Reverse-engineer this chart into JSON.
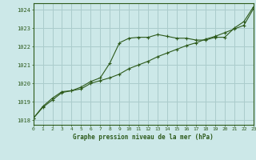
{
  "title": "Graphe pression niveau de la mer (hPa)",
  "bg_color": "#cce8e8",
  "grid_color": "#aacccc",
  "line_color": "#2d5a1b",
  "x_values": [
    0,
    1,
    2,
    3,
    4,
    5,
    6,
    7,
    8,
    9,
    10,
    11,
    12,
    13,
    14,
    15,
    16,
    17,
    18,
    19,
    20,
    21,
    22,
    23
  ],
  "series1": [
    1018.1,
    1018.7,
    1019.1,
    1019.5,
    1019.6,
    1019.8,
    1020.1,
    1020.3,
    1021.1,
    1022.2,
    1022.45,
    1022.5,
    1022.5,
    1022.65,
    1022.55,
    1022.45,
    1022.45,
    1022.35,
    1022.35,
    1022.5,
    1022.5,
    1023.0,
    1023.35,
    1024.15
  ],
  "series2": [
    1018.1,
    1018.75,
    1019.2,
    1019.55,
    1019.6,
    1019.7,
    1020.0,
    1020.15,
    1020.3,
    1020.5,
    1020.8,
    1021.0,
    1021.2,
    1021.45,
    1021.65,
    1021.85,
    1022.05,
    1022.2,
    1022.4,
    1022.55,
    1022.75,
    1022.95,
    1023.15,
    1024.05
  ],
  "ylim": [
    1017.75,
    1024.35
  ],
  "yticks": [
    1018,
    1019,
    1020,
    1021,
    1022,
    1023,
    1024
  ],
  "xlim": [
    0,
    23
  ],
  "xticks": [
    0,
    1,
    2,
    3,
    4,
    5,
    6,
    7,
    8,
    9,
    10,
    11,
    12,
    13,
    14,
    15,
    16,
    17,
    18,
    19,
    20,
    21,
    22,
    23
  ]
}
